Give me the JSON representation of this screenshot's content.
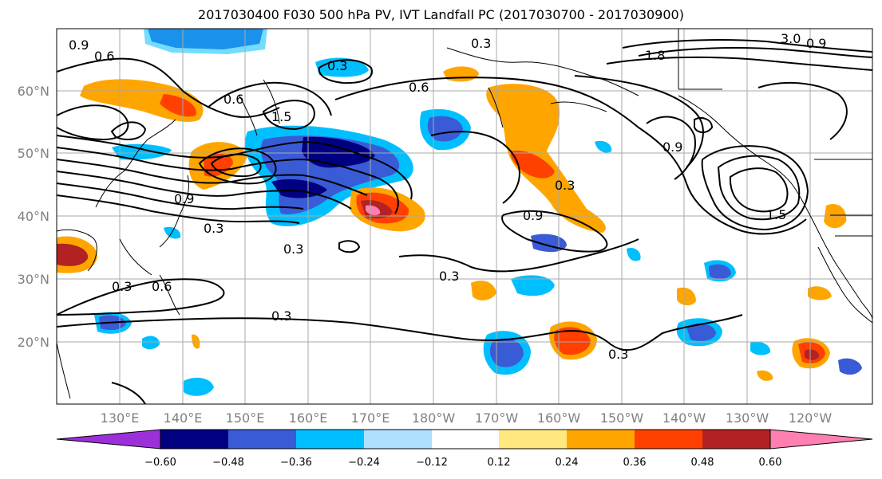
{
  "title": "2017030400 F030 500 hPa PV, IVT Landfall PC (2017030700 - 2017030900)",
  "lat_labels": [
    "60°N",
    "50°N",
    "40°N",
    "30°N",
    "20°N"
  ],
  "lon_labels": [
    "130°E",
    "140°E",
    "150°E",
    "160°E",
    "170°E",
    "180°W",
    "170°W",
    "160°W",
    "150°W",
    "140°W",
    "130°W",
    "120°W"
  ],
  "colorbar": {
    "ticks": [
      "−0.60",
      "−0.48",
      "−0.36",
      "−0.24",
      "−0.12",
      "0.12",
      "0.24",
      "0.36",
      "0.48",
      "0.60"
    ],
    "colors": [
      "#9b30d9",
      "#000080",
      "#3a5bd6",
      "#00bfff",
      "#aee0ff",
      "#ffffff",
      "#ffe97f",
      "#ffa500",
      "#ff4000",
      "#b22222",
      "#ff80b0"
    ],
    "extend": "both"
  },
  "contour_labels": [
    "0.9",
    "0.6",
    "0.3",
    "0.3",
    "0.6",
    "1.8",
    "3.0",
    "0.6",
    "1.5",
    "0.9",
    "0.9",
    "0.3",
    "0.3",
    "0.3",
    "0.6",
    "0.3",
    "0.3",
    "0.3",
    "0.9",
    "0.3",
    "1.5",
    "0.9"
  ],
  "shading": [
    {
      "color": "#3a5bd6",
      "name": "blue-top"
    },
    {
      "color": "#000080",
      "name": "navy-core"
    }
  ]
}
